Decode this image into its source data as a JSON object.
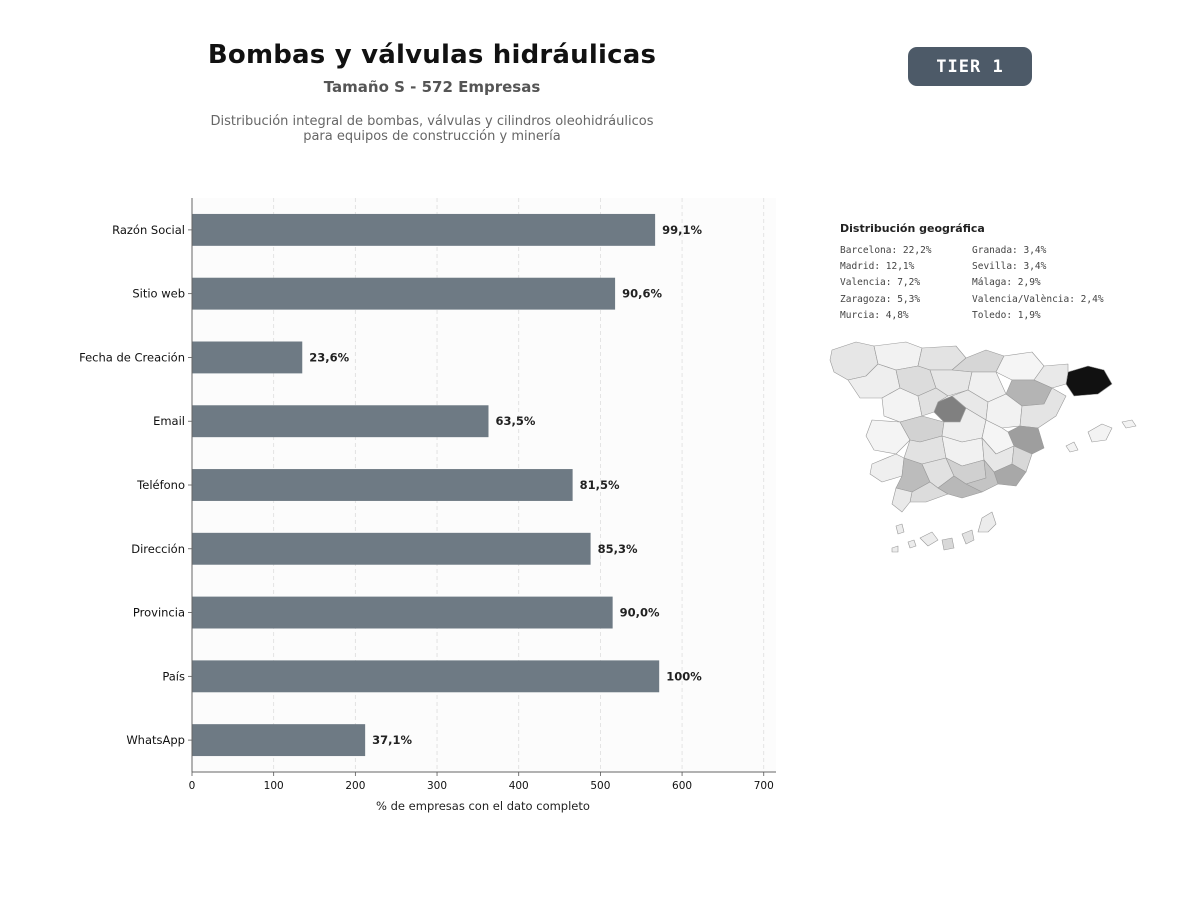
{
  "header": {
    "title": "Bombas y válvulas hidráulicas",
    "subtitle": "Tamaño S - 572 Empresas",
    "description_line1": "Distribución integral de bombas, válvulas y cilindros oleohidráulicos",
    "description_line2": "para equipos de construcción y minería"
  },
  "badge": {
    "label": "TIER 1"
  },
  "chart_data": {
    "type": "bar",
    "orientation": "horizontal",
    "categories": [
      "Razón Social",
      "Sitio web",
      "Fecha de Creación",
      "Email",
      "Teléfono",
      "Dirección",
      "Provincia",
      "País",
      "WhatsApp"
    ],
    "values": [
      567,
      518,
      135,
      363,
      466,
      488,
      515,
      572,
      212
    ],
    "labels": [
      "99,1%",
      "90,6%",
      "23,6%",
      "63,5%",
      "81,5%",
      "85,3%",
      "90,0%",
      "100%",
      "37,1%"
    ],
    "xlabel": "% de empresas con el dato completo",
    "ylabel": "",
    "xlim": [
      0,
      715
    ],
    "xticks": [
      0,
      100,
      200,
      300,
      400,
      500,
      600,
      700
    ],
    "grid": "vertical-dashed",
    "bar_color": "#6e7a84"
  },
  "geo": {
    "title": "Distribución geográfica",
    "items": [
      "Barcelona: 22,2%",
      "Granada: 3,4%",
      "Madrid: 12,1%",
      "Sevilla: 3,4%",
      "Valencia: 7,2%",
      "Málaga: 2,9%",
      "Zaragoza: 5,3%",
      "Valencia/València: 2,4%",
      "Murcia: 4,8%",
      "Toledo: 1,9%"
    ]
  }
}
